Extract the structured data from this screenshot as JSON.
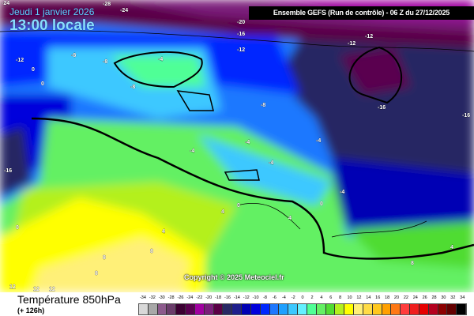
{
  "header": {
    "date": "Jeudi 1 janvier 2026",
    "local_time": "13:00 locale",
    "run": "Ensemble GEFS  (Run de contrôle)  -  06 Z du 27/12/2025"
  },
  "copyright": "Copyright © 2025 Meteociel.fr",
  "footer": {
    "parameter": "Température 850hPa",
    "lead": "(+ 126h)"
  },
  "legend": {
    "labels": [
      "-34",
      "-32",
      "-30",
      "-28",
      "-26",
      "-24",
      "-22",
      "-20",
      "-18",
      "-16",
      "-14",
      "-12",
      "-10",
      "-8",
      "-6",
      "-4",
      "-2",
      "0",
      "2",
      "4",
      "6",
      "8",
      "10",
      "12",
      "14",
      "16",
      "18",
      "20",
      "22",
      "24",
      "26",
      "28",
      "30",
      "32",
      "34"
    ],
    "colors": [
      "#d8d8d8",
      "#a8a8a8",
      "#8c5a8c",
      "#6a3c6a",
      "#3c0032",
      "#5a0050",
      "#a000a0",
      "#7a1e7a",
      "#5a0046",
      "#282864",
      "#1e1e8c",
      "#0000b4",
      "#0000dc",
      "#0028ff",
      "#1e78ff",
      "#1ea0ff",
      "#3cc8ff",
      "#64f0ff",
      "#50ff96",
      "#64f064",
      "#50dc32",
      "#b4f01e",
      "#ffff00",
      "#fff078",
      "#ffdc46",
      "#ffc81e",
      "#ffa000",
      "#ff7814",
      "#ff3c3c",
      "#f01e1e",
      "#e60000",
      "#b4001e",
      "#8c0000",
      "#640000",
      "#000000"
    ]
  },
  "map_labels": [
    "-24",
    "-28",
    "-24",
    "-20",
    "-16",
    "-12",
    "-12",
    "-12",
    "-8",
    "-8",
    "-4",
    "0",
    "0",
    "-8",
    "-16",
    "-16",
    "-8",
    "-4",
    "-4",
    "-4",
    "0",
    "0",
    "-12",
    "-16",
    "-4",
    "-4",
    "0",
    "4",
    "4",
    "4",
    "8",
    "8",
    "8",
    "12",
    "12",
    "12",
    "4",
    "8"
  ]
}
